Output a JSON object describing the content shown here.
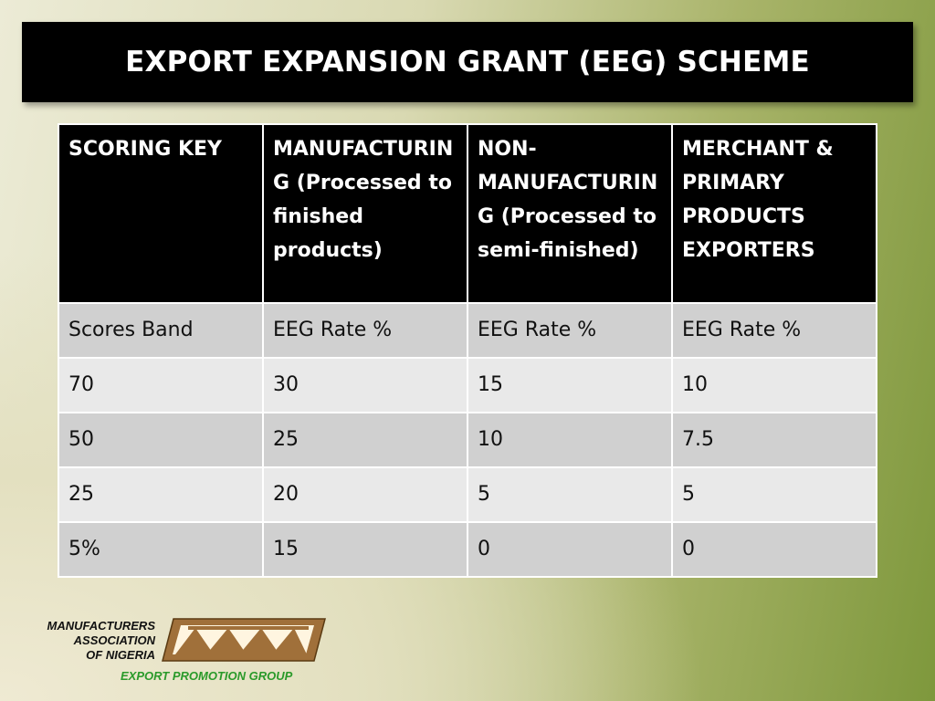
{
  "title": "EXPORT EXPANSION GRANT (EEG) SCHEME",
  "table": {
    "headers": [
      "SCORING KEY",
      "MANUFACTURING (Processed to finished products)",
      "NON-MANUFACTURING (Processed to semi-finished)",
      "MERCHANT & PRIMARY PRODUCTS EXPORTERS"
    ],
    "rows": [
      [
        "Scores Band",
        "EEG Rate %",
        "EEG Rate %",
        "EEG Rate %"
      ],
      [
        "70",
        "30",
        "15",
        "10"
      ],
      [
        "50",
        "25",
        "10",
        "7.5"
      ],
      [
        "25",
        "20",
        "5",
        "5"
      ],
      [
        "5%",
        "15",
        "0",
        "0"
      ]
    ]
  },
  "footer": {
    "org_lines": [
      "MANUFACTURERS",
      "ASSOCIATION",
      "OF NIGERIA"
    ],
    "group": "EXPORT PROMOTION GROUP",
    "logo_icon": "man-logo-icon",
    "colors": {
      "logo_brown": "#a0703a",
      "group_green": "#2a9a2a"
    }
  }
}
